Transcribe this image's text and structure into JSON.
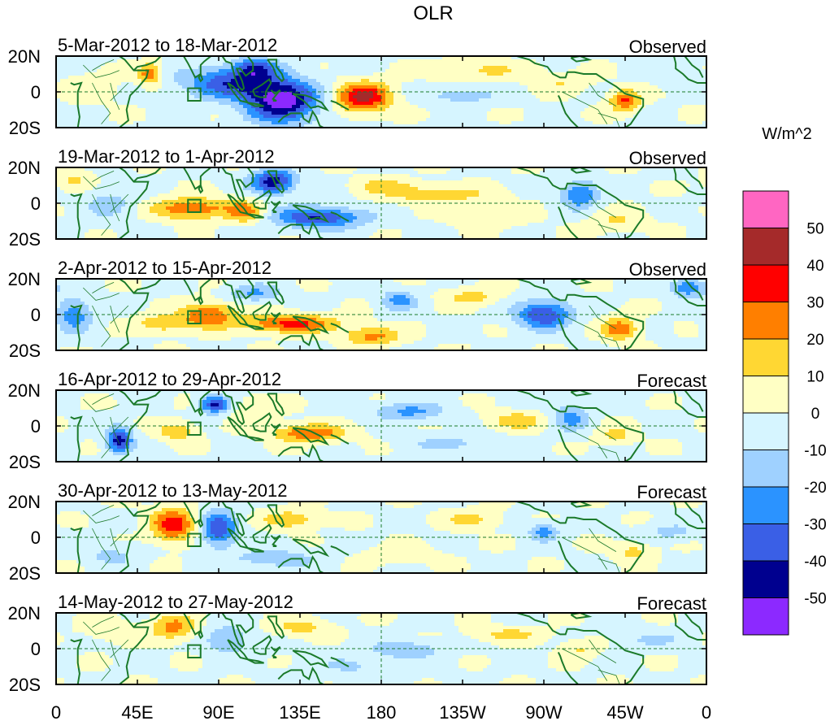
{
  "chart_data": {
    "type": "heatmap",
    "title": "OLR",
    "units": "W/m^2",
    "x_ticks": [
      "0",
      "45E",
      "90E",
      "135E",
      "180",
      "135W",
      "90W",
      "45W",
      "0"
    ],
    "x_tick_degrees": [
      0,
      45,
      90,
      135,
      180,
      225,
      270,
      315,
      360
    ],
    "y_ticks": [
      "20N",
      "0",
      "20S"
    ],
    "y_tick_degrees": [
      20,
      0,
      -20
    ],
    "lon_range": [
      0,
      360
    ],
    "lat_range": [
      -20,
      20
    ],
    "colorbar": {
      "labels": [
        "50",
        "40",
        "30",
        "20",
        "10",
        "0",
        "-10",
        "-20",
        "-30",
        "-40",
        "-50"
      ],
      "levels": [
        50,
        40,
        30,
        20,
        10,
        0,
        -10,
        -20,
        -30,
        -40,
        -50
      ],
      "colors": [
        "#ff66c2",
        "#a52a2a",
        "#ff0000",
        "#ff7f00",
        "#ffd733",
        "#ffffc4",
        "#d6f5ff",
        "#9fd1ff",
        "#2b93ff",
        "#3a5fe6",
        "#00008f",
        "#8c29ff"
      ]
    },
    "panels": [
      {
        "period": "5-Mar-2012 to 18-Mar-2012",
        "kind": "Observed",
        "anomalies": [
          {
            "lon": 52,
            "lat": 10,
            "rlon": 6,
            "rlat": 6,
            "v": 30
          },
          {
            "lon": 95,
            "lat": 5,
            "rlon": 25,
            "rlat": 9,
            "v": -35
          },
          {
            "lon": 125,
            "lat": -5,
            "rlon": 20,
            "rlat": 12,
            "v": -55
          },
          {
            "lon": 110,
            "lat": 13,
            "rlon": 12,
            "rlat": 6,
            "v": -30
          },
          {
            "lon": 170,
            "lat": -3,
            "rlon": 15,
            "rlat": 8,
            "v": 45
          },
          {
            "lon": 235,
            "lat": 12,
            "rlon": 30,
            "rlat": 5,
            "v": 12
          },
          {
            "lon": 225,
            "lat": -2,
            "rlon": 20,
            "rlat": 5,
            "v": -15
          },
          {
            "lon": 280,
            "lat": 5,
            "rlon": 15,
            "rlat": 5,
            "v": 10
          },
          {
            "lon": 315,
            "lat": -5,
            "rlon": 8,
            "rlat": 6,
            "v": 32
          },
          {
            "lon": 20,
            "lat": 3,
            "rlon": 15,
            "rlat": 8,
            "v": 8
          },
          {
            "lon": 345,
            "lat": 10,
            "rlon": 12,
            "rlat": 6,
            "v": -8
          }
        ]
      },
      {
        "period": "19-Mar-2012 to 1-Apr-2012",
        "kind": "Observed",
        "anomalies": [
          {
            "lon": 75,
            "lat": -3,
            "rlon": 22,
            "rlat": 6,
            "v": 30
          },
          {
            "lon": 105,
            "lat": -5,
            "rlon": 10,
            "rlat": 6,
            "v": 25
          },
          {
            "lon": 120,
            "lat": 12,
            "rlon": 12,
            "rlat": 7,
            "v": -45
          },
          {
            "lon": 145,
            "lat": -8,
            "rlon": 25,
            "rlat": 6,
            "v": -40
          },
          {
            "lon": 180,
            "lat": 10,
            "rlon": 15,
            "rlat": 4,
            "v": 15
          },
          {
            "lon": 210,
            "lat": 5,
            "rlon": 30,
            "rlat": 5,
            "v": 18
          },
          {
            "lon": 240,
            "lat": -8,
            "rlon": 20,
            "rlat": 5,
            "v": 12
          },
          {
            "lon": 290,
            "lat": 5,
            "rlon": 10,
            "rlat": 8,
            "v": -30
          },
          {
            "lon": 310,
            "lat": -10,
            "rlon": 15,
            "rlat": 6,
            "v": 12
          },
          {
            "lon": 30,
            "lat": 0,
            "rlon": 18,
            "rlat": 10,
            "v": -12
          },
          {
            "lon": 10,
            "lat": 12,
            "rlon": 10,
            "rlat": 6,
            "v": 14
          }
        ]
      },
      {
        "period": "2-Apr-2012 to 15-Apr-2012",
        "kind": "Observed",
        "anomalies": [
          {
            "lon": 85,
            "lat": 0,
            "rlon": 15,
            "rlat": 7,
            "v": 30
          },
          {
            "lon": 60,
            "lat": -5,
            "rlon": 15,
            "rlat": 5,
            "v": 20
          },
          {
            "lon": 130,
            "lat": -5,
            "rlon": 25,
            "rlat": 5,
            "v": 35
          },
          {
            "lon": 175,
            "lat": -12,
            "rlon": 15,
            "rlat": 5,
            "v": 25
          },
          {
            "lon": 110,
            "lat": 12,
            "rlon": 15,
            "rlat": 5,
            "v": -20
          },
          {
            "lon": 190,
            "lat": 8,
            "rlon": 10,
            "rlat": 6,
            "v": -22
          },
          {
            "lon": 230,
            "lat": 10,
            "rlon": 15,
            "rlat": 5,
            "v": 15
          },
          {
            "lon": 270,
            "lat": 0,
            "rlon": 15,
            "rlat": 8,
            "v": -40
          },
          {
            "lon": 312,
            "lat": -8,
            "rlon": 10,
            "rlat": 6,
            "v": 30
          },
          {
            "lon": 10,
            "lat": 0,
            "rlon": 10,
            "rlat": 10,
            "v": -25
          },
          {
            "lon": 350,
            "lat": 15,
            "rlon": 10,
            "rlat": 5,
            "v": -30
          }
        ]
      },
      {
        "period": "16-Apr-2012 to 29-Apr-2012",
        "kind": "Forecast",
        "anomalies": [
          {
            "lon": 35,
            "lat": -8,
            "rlon": 7,
            "rlat": 7,
            "v": -45
          },
          {
            "lon": 88,
            "lat": 12,
            "rlon": 8,
            "rlat": 5,
            "v": -42
          },
          {
            "lon": 67,
            "lat": -3,
            "rlon": 10,
            "rlat": 5,
            "v": 22
          },
          {
            "lon": 140,
            "lat": -4,
            "rlon": 20,
            "rlat": 5,
            "v": 30
          },
          {
            "lon": 195,
            "lat": 8,
            "rlon": 20,
            "rlat": 5,
            "v": -22
          },
          {
            "lon": 255,
            "lat": 3,
            "rlon": 15,
            "rlat": 5,
            "v": 18
          },
          {
            "lon": 285,
            "lat": 5,
            "rlon": 10,
            "rlat": 8,
            "v": -22
          },
          {
            "lon": 310,
            "lat": -5,
            "rlon": 10,
            "rlat": 5,
            "v": 15
          },
          {
            "lon": 220,
            "lat": -10,
            "rlon": 25,
            "rlat": 5,
            "v": -12
          },
          {
            "lon": 110,
            "lat": 10,
            "rlon": 15,
            "rlat": 6,
            "v": 10
          }
        ]
      },
      {
        "period": "30-Apr-2012 to 13-May-2012",
        "kind": "Forecast",
        "anomalies": [
          {
            "lon": 65,
            "lat": 7,
            "rlon": 12,
            "rlat": 9,
            "v": 38
          },
          {
            "lon": 90,
            "lat": 5,
            "rlon": 10,
            "rlat": 10,
            "v": -38
          },
          {
            "lon": 130,
            "lat": 10,
            "rlon": 15,
            "rlat": 5,
            "v": 20
          },
          {
            "lon": 230,
            "lat": 10,
            "rlon": 15,
            "rlat": 5,
            "v": 15
          },
          {
            "lon": 270,
            "lat": 3,
            "rlon": 8,
            "rlat": 5,
            "v": -25
          },
          {
            "lon": 340,
            "lat": 3,
            "rlon": 15,
            "rlat": 5,
            "v": -12
          },
          {
            "lon": 320,
            "lat": -8,
            "rlon": 10,
            "rlat": 5,
            "v": 15
          },
          {
            "lon": 120,
            "lat": -12,
            "rlon": 25,
            "rlat": 6,
            "v": -15
          },
          {
            "lon": 30,
            "lat": -10,
            "rlon": 15,
            "rlat": 6,
            "v": -12
          },
          {
            "lon": 190,
            "lat": -10,
            "rlon": 20,
            "rlat": 5,
            "v": 8
          }
        ]
      },
      {
        "period": "14-May-2012 to 27-May-2012",
        "kind": "Forecast",
        "anomalies": [
          {
            "lon": 65,
            "lat": 12,
            "rlon": 12,
            "rlat": 7,
            "v": 25
          },
          {
            "lon": 95,
            "lat": 5,
            "rlon": 12,
            "rlat": 8,
            "v": -20
          },
          {
            "lon": 135,
            "lat": 12,
            "rlon": 15,
            "rlat": 5,
            "v": 15
          },
          {
            "lon": 195,
            "lat": 0,
            "rlon": 20,
            "rlat": 5,
            "v": -15
          },
          {
            "lon": 250,
            "lat": 8,
            "rlon": 20,
            "rlat": 4,
            "v": 14
          },
          {
            "lon": 170,
            "lat": -10,
            "rlon": 30,
            "rlat": 8,
            "v": -10
          },
          {
            "lon": 290,
            "lat": 0,
            "rlon": 10,
            "rlat": 5,
            "v": 12
          },
          {
            "lon": 330,
            "lat": 5,
            "rlon": 20,
            "rlat": 5,
            "v": -10
          },
          {
            "lon": 30,
            "lat": 10,
            "rlon": 15,
            "rlat": 6,
            "v": 8
          }
        ]
      }
    ]
  }
}
